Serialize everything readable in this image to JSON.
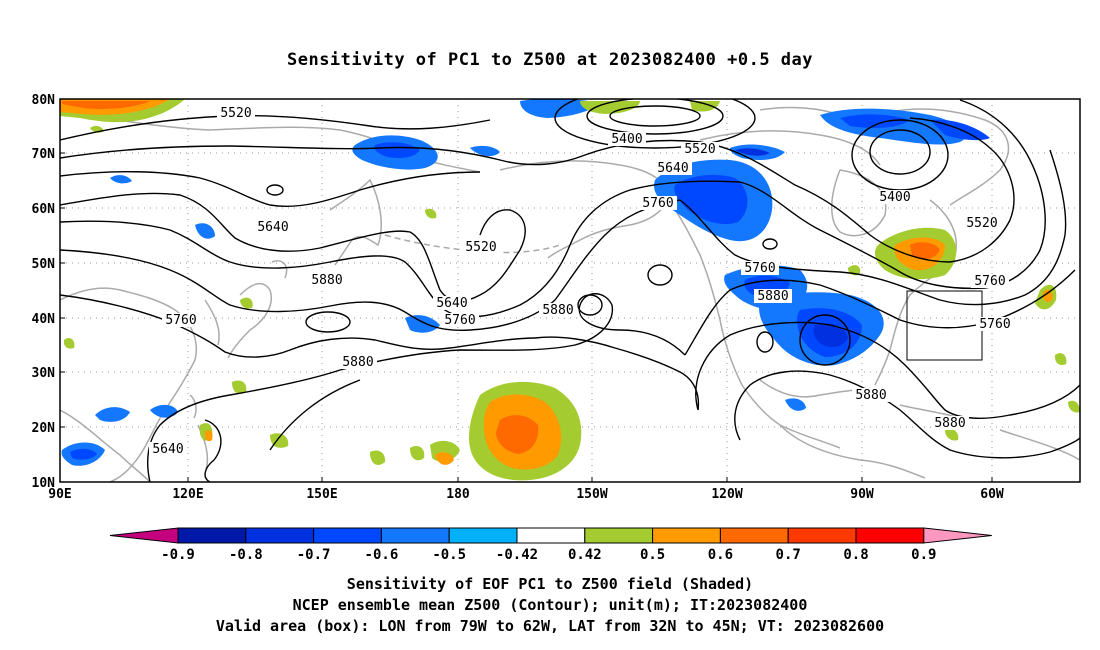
{
  "title": "Sensitivity of PC1 to Z500 at 2023082400 +0.5 day",
  "map": {
    "lat_labels": [
      "80N",
      "70N",
      "60N",
      "50N",
      "40N",
      "30N",
      "20N",
      "10N"
    ],
    "lon_labels": [
      "90E",
      "120E",
      "150E",
      "180",
      "150W",
      "120W",
      "90W",
      "60W"
    ],
    "contour_labels": [
      {
        "text": "5520"
      },
      {
        "text": "5400"
      },
      {
        "text": "5520"
      },
      {
        "text": "5640"
      },
      {
        "text": "5760"
      },
      {
        "text": "5400"
      },
      {
        "text": "5520"
      },
      {
        "text": "5640"
      },
      {
        "text": "5520"
      },
      {
        "text": "5640"
      },
      {
        "text": "5760"
      },
      {
        "text": "5760"
      },
      {
        "text": "5880"
      },
      {
        "text": "5880"
      },
      {
        "text": "5760"
      },
      {
        "text": "5760"
      },
      {
        "text": "5880"
      },
      {
        "text": "5880"
      },
      {
        "text": "5880"
      },
      {
        "text": "5880"
      },
      {
        "text": "5640"
      },
      {
        "text": "5760"
      }
    ],
    "valid_box": {
      "lon_range": [
        "79W",
        "62W"
      ],
      "lat_range": [
        "32N",
        "45N"
      ]
    }
  },
  "colorbar": {
    "ticks": [
      "-0.9",
      "-0.8",
      "-0.7",
      "-0.6",
      "-0.5",
      "-0.42",
      "0.42",
      "0.5",
      "0.6",
      "0.7",
      "0.8",
      "0.9"
    ],
    "colors": [
      "#c4007f",
      "#0018a8",
      "#0030e0",
      "#0048ff",
      "#1478ff",
      "#00b0f8",
      "#ffffff",
      "#a4cc30",
      "#ff9a00",
      "#ff6a00",
      "#ff3a00",
      "#ff0000",
      "#ff98c0"
    ]
  },
  "caption": {
    "line1": "Sensitivity of EOF PC1 to Z500 field (Shaded)",
    "line2": "NCEP ensemble mean Z500 (Contour); unit(m); IT:2023082400",
    "line3": "Valid area (box): LON from 79W to 62W, LAT from 32N to 45N; VT: 2023082600"
  }
}
